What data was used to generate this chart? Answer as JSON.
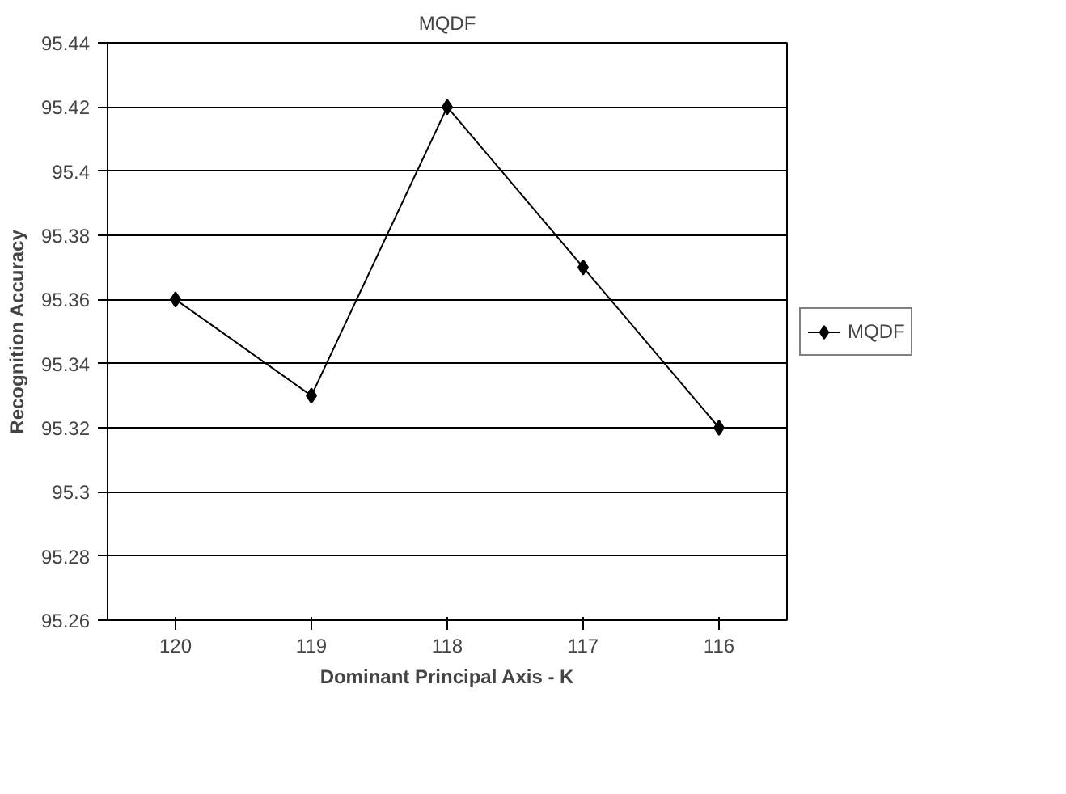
{
  "chart_data": {
    "type": "line",
    "title": "MQDF",
    "xlabel": "Dominant Principal Axis - K",
    "ylabel": "Recognition Accuracy",
    "categories": [
      "120",
      "119",
      "118",
      "117",
      "116"
    ],
    "series": [
      {
        "name": "MQDF",
        "color": "#000000",
        "values": [
          95.36,
          95.33,
          95.42,
          95.37,
          95.32
        ]
      }
    ],
    "ylim": [
      95.26,
      95.44
    ],
    "yticks": [
      95.26,
      95.28,
      95.3,
      95.32,
      95.34,
      95.36,
      95.38,
      95.4,
      95.42,
      95.44
    ],
    "grid": "y",
    "legend": "right",
    "marker": "diamond",
    "line_style": "solid"
  }
}
